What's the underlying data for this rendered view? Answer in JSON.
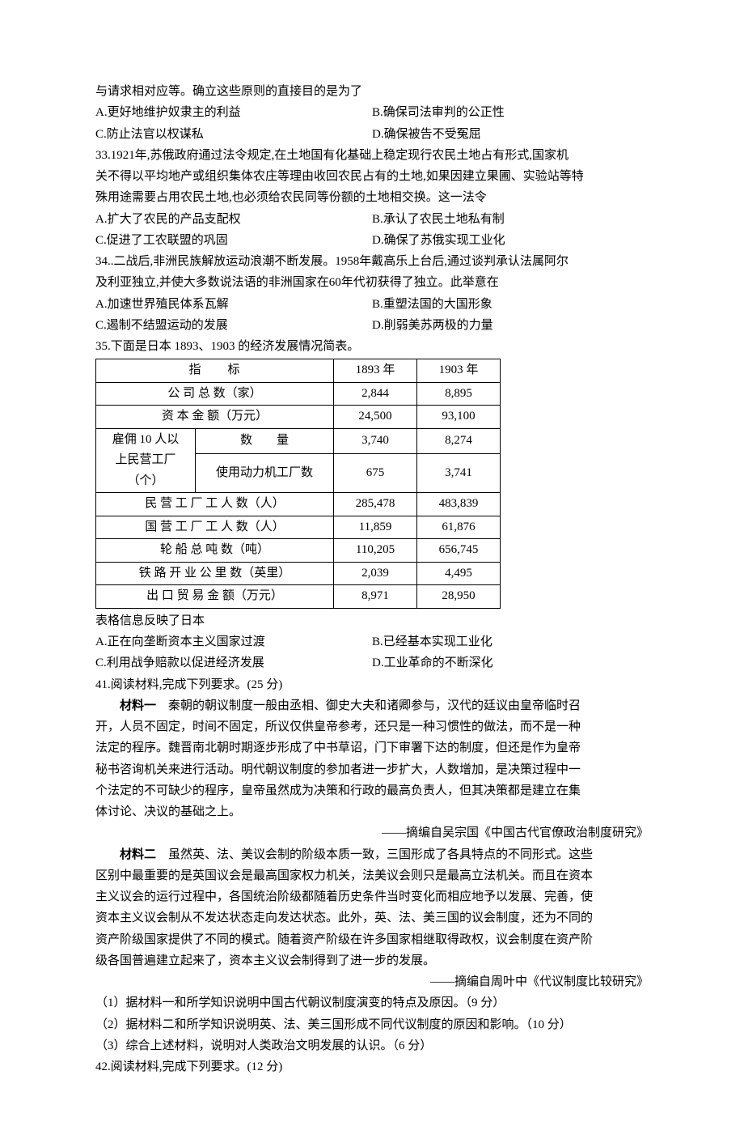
{
  "q32": {
    "stem_tail": "与请求相对应等。确立这些原则的直接目的是为了",
    "A": "A.更好地维护奴隶主的利益",
    "B": "B.确保司法审判的公正性",
    "C": "C.防止法官以权谋私",
    "D": "D.确保被告不受冤屈"
  },
  "q33": {
    "stem1": "33.1921年,苏俄政府通过法令规定,在土地国有化基础上稳定现行农民土地占有形式,国家机",
    "stem2": "关不得以平均地产或组织集体农庄等理由收回农民占有的土地,如果因建立果圃、实验站等特",
    "stem3": "殊用途需要占用农民土地,也必须给农民同等份额的土地相交换。这一法令",
    "A": "A.扩大了农民的产品支配权",
    "B": "B.承认了农民土地私有制",
    "C": "C.促进了工农联盟的巩固",
    "D": "D.确保了苏俄实现工业化"
  },
  "q34": {
    "stem1": "34..二战后,非洲民族解放运动浪潮不断发展。1958年戴高乐上台后,通过谈判承认法属阿尔",
    "stem2": "及利亚独立,并使大多数说法语的非洲国家在60年代初获得了独立。此举意在",
    "A": "A.加速世界殖民体系瓦解",
    "B": "B.重塑法国的大国形象",
    "C": "C.遏制不结盟运动的发展",
    "D": "D.削弱美苏两极的力量"
  },
  "q35": {
    "stem": "35.下面是日本 1893、1903 的经济发展情况简表。",
    "table": {
      "header_label": "指　　标",
      "y1": "1893 年",
      "y2": "1903 年",
      "rows": [
        {
          "label": "公 司 总 数（家）",
          "v1": "2,844",
          "v2": "8,895"
        },
        {
          "label": "资 本 金 额（万元）",
          "v1": "24,500",
          "v2": "93,100"
        }
      ],
      "merged": {
        "left1": "雇佣 10 人以",
        "left2": "上民营工厂",
        "left3": "（个）",
        "r1label": "数　　量",
        "r1v1": "3,740",
        "r1v2": "8,274",
        "r2label": "使用动力机工厂数",
        "r2v1": "675",
        "r2v2": "3,741"
      },
      "rows2": [
        {
          "label": "民 营 工 厂 工 人 数（人）",
          "v1": "285,478",
          "v2": "483,839"
        },
        {
          "label": "国 营 工 厂 工 人 数（人）",
          "v1": "11,859",
          "v2": "61,876"
        },
        {
          "label": "轮 船 总 吨 数（吨）",
          "v1": "110,205",
          "v2": "656,745"
        },
        {
          "label": "铁 路 开 业 公 里 数（英里）",
          "v1": "2,039",
          "v2": "4,495"
        },
        {
          "label": "出 口 贸 易 金 额（万元）",
          "v1": "8,971",
          "v2": "28,950"
        }
      ]
    },
    "after": "表格信息反映了日本",
    "A": "A.正在向垄断资本主义国家过渡",
    "B": "B.已经基本实现工业化",
    "C": "C.利用战争赔款以促进经济发展",
    "D": "D.工业革命的不断深化"
  },
  "q41": {
    "title": "41.阅读材料,完成下列要求。(25 分)",
    "m1label": "材料一",
    "m1_1": "　秦朝的朝议制度一般由丞相、御史大夫和诸卿参与，汉代的廷议由皇帝临时召",
    "m1_2": "开，人员不固定，时间不固定，所议仅供皇帝参考，还只是一种习惯性的做法，而不是一种",
    "m1_3": "法定的程序。魏晋南北朝时期逐步形成了中书草诏，门下审署下达的制度，但还是作为皇帝",
    "m1_4": "秘书咨询机关来进行活动。明代朝议制度的参加者进一步扩大，人数增加，是决策过程中一",
    "m1_5": "个法定的不可缺少的程序，皇帝虽然成为决策和行政的最高负责人，但其决策都是建立在集",
    "m1_6": "体讨论、决议的基础之上。",
    "m1src": "——摘编自吴宗国《中国古代官僚政治制度研究》",
    "m2label": "材料二",
    "m2_1": "　虽然英、法、美议会制的阶级本质一致，三国形成了各具特点的不同形式。这些",
    "m2_2": "区别中最重要的是英国议会是最高国家权力机关，法美议会则只是最高立法机关。而且在资本",
    "m2_3": "主义议会的运行过程中，各国统治阶级都随着历史条件当时变化而相应地予以发展、完善，使",
    "m2_4": "资本主义议会制从不发达状态走向发达状态。此外，英、法、美三国的议会制度，还为不同的",
    "m2_5": "资产阶级国家提供了不同的模式。随着资产阶级在许多国家相继取得政权，议会制度在资产阶",
    "m2_6": "级各国普遍建立起来了，资本主义议会制得到了进一步的发展。",
    "m2src": "——摘编自周叶中《代议制度比较研究》",
    "sub1": "（1）据材料一和所学知识说明中国古代朝议制度演变的特点及原因。（9 分）",
    "sub2": "（2）据材料二和所学知识说明英、法、美三国形成不同代议制度的原因和影响。（10 分）",
    "sub3": "（3）综合上述材料，说明对人类政治文明发展的认识。（6 分）"
  },
  "q42": {
    "title": "42.阅读材料,完成下列要求。(12 分)"
  }
}
